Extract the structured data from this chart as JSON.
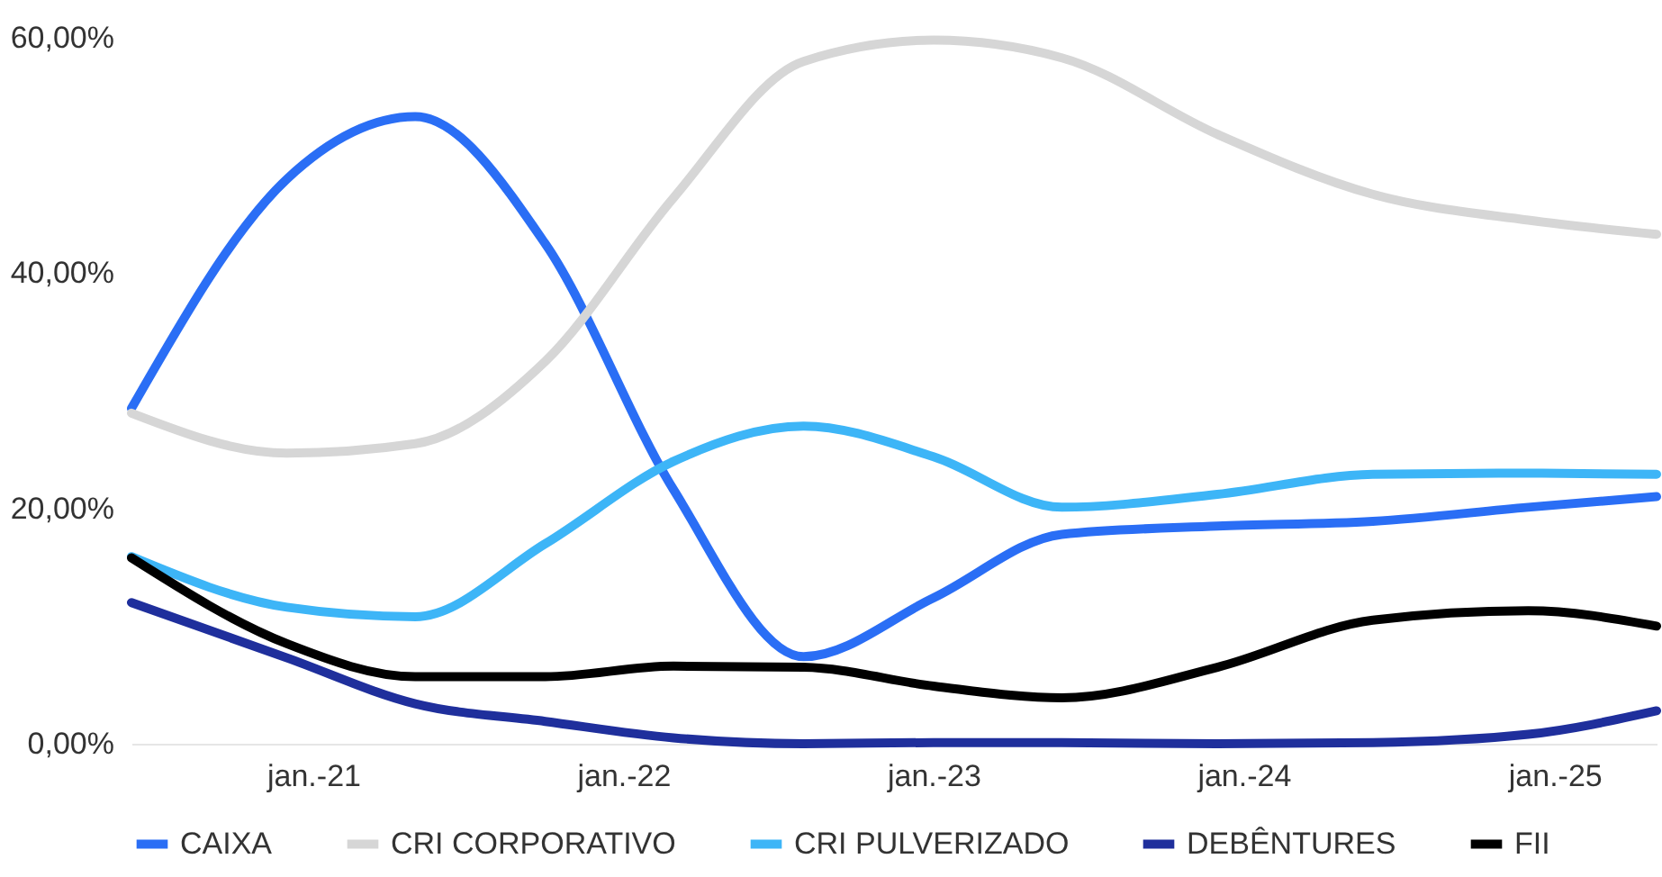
{
  "chart_data": {
    "type": "line",
    "x": [
      "2020-06",
      "2020-12",
      "2021-05",
      "2021-10",
      "2022-03",
      "2022-08",
      "2023-01",
      "2023-06",
      "2023-12",
      "2024-06",
      "2024-12",
      "2025-05"
    ],
    "series": [
      {
        "name": "CAIXA",
        "color": "#2a6ef5",
        "values": [
          28.5,
          48,
          53.3,
          42.5,
          21.6,
          7.4,
          12.4,
          17.8,
          18.5,
          18.9,
          20.1,
          21
        ]
      },
      {
        "name": "CRI CORPORATIVO",
        "color": "#d6d6d6",
        "values": [
          28.1,
          24.7,
          25.5,
          32.5,
          46.4,
          58,
          59.8,
          58.3,
          51.8,
          46.7,
          44.5,
          43.3
        ]
      },
      {
        "name": "CRI PULVERIZADO",
        "color": "#3db5f7",
        "values": [
          15.9,
          11.6,
          10.8,
          17,
          24,
          27,
          24.4,
          20.1,
          21.2,
          22.9,
          23,
          22.9
        ]
      },
      {
        "name": "DEBÊNTURES",
        "color": "#1f2f9c",
        "values": [
          12,
          7.3,
          3.4,
          1.9,
          0.5,
          0,
          0.1,
          0.1,
          0,
          0.1,
          0.8,
          2.8
        ]
      },
      {
        "name": "FII",
        "color": "#000000",
        "values": [
          15.8,
          8.5,
          5.7,
          5.7,
          6.6,
          6.5,
          4.9,
          3.9,
          6.5,
          10.5,
          11.3,
          10
        ]
      }
    ],
    "xlim": [
      "2020-06",
      "2025-05"
    ],
    "xticks": [
      {
        "value": "2021-01",
        "label": "jan.-21"
      },
      {
        "value": "2022-01",
        "label": "jan.-22"
      },
      {
        "value": "2023-01",
        "label": "jan.-23"
      },
      {
        "value": "2024-01",
        "label": "jan.-24"
      },
      {
        "value": "2025-01",
        "label": "jan.-25"
      }
    ],
    "ylim": [
      0,
      60
    ],
    "yticks": [
      {
        "value": 0,
        "label": "0,00%"
      },
      {
        "value": 20,
        "label": "20,00%"
      },
      {
        "value": 40,
        "label": "40,00%"
      },
      {
        "value": 60,
        "label": "60,00%"
      }
    ],
    "grid": false,
    "legend": "bottom",
    "marker": "none",
    "line_style": "solid"
  }
}
